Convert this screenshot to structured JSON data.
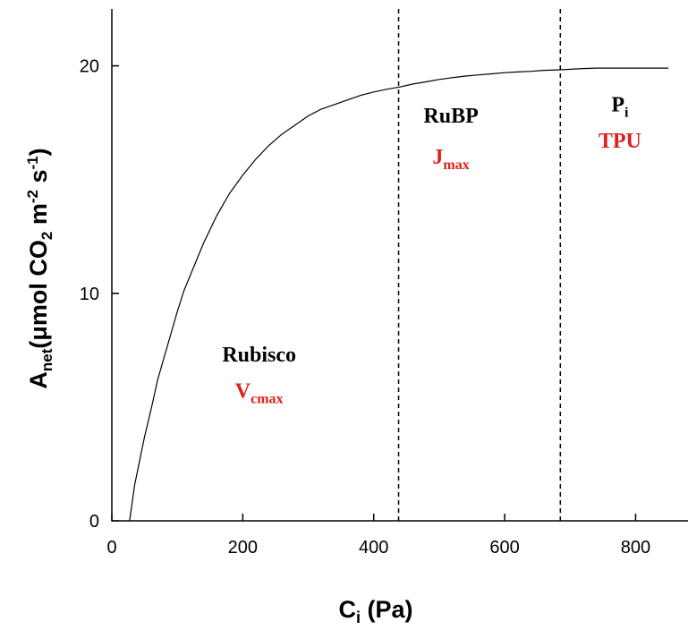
{
  "chart_data": {
    "type": "line",
    "title": "",
    "xlabel": {
      "main": "C",
      "sub": "i",
      "rest": " (Pa)"
    },
    "ylabel": {
      "main": "A",
      "sub": "net",
      "rest": "(μmol CO",
      "co2_sub": "2",
      "rest2": " m",
      "exp1": "-2",
      "rest3": " s",
      "exp2": "-1",
      "close": ")"
    },
    "xlim": [
      0,
      880
    ],
    "ylim": [
      0,
      22.5
    ],
    "xticks": [
      {
        "value": 0,
        "label": "0"
      },
      {
        "value": 200,
        "label": "200"
      },
      {
        "value": 400,
        "label": "400"
      },
      {
        "value": 600,
        "label": "600"
      },
      {
        "value": 800,
        "label": "800"
      }
    ],
    "yticks": [
      {
        "value": 0,
        "label": "0"
      },
      {
        "value": 10,
        "label": "10"
      },
      {
        "value": 20,
        "label": "20"
      }
    ],
    "grid": false,
    "series": [
      {
        "x": [
          27,
          30,
          35,
          40,
          45,
          50,
          60,
          70,
          80,
          90,
          100,
          110,
          120,
          140,
          160,
          180,
          200,
          220,
          240,
          260,
          280,
          300,
          320,
          340,
          360,
          380,
          400,
          420,
          440,
          460,
          480,
          500,
          520,
          540,
          560,
          580,
          600,
          620,
          640,
          660,
          680,
          700,
          720,
          740,
          760,
          780,
          800,
          820,
          850
        ],
        "y": [
          0,
          0.6,
          1.6,
          2.3,
          3.0,
          3.7,
          4.9,
          6.2,
          7.2,
          8.2,
          9.2,
          10.1,
          10.8,
          12.2,
          13.4,
          14.4,
          15.2,
          15.9,
          16.5,
          17.0,
          17.4,
          17.8,
          18.1,
          18.3,
          18.5,
          18.7,
          18.85,
          18.97,
          19.07,
          19.2,
          19.3,
          19.4,
          19.48,
          19.55,
          19.6,
          19.65,
          19.7,
          19.73,
          19.76,
          19.8,
          19.82,
          19.85,
          19.88,
          19.9,
          19.9,
          19.9,
          19.9,
          19.9,
          19.9
        ],
        "color": "#000000"
      }
    ],
    "vlines": [
      {
        "x": 438,
        "style": "dashed"
      },
      {
        "x": 685,
        "style": "dashed"
      }
    ],
    "annotations": [
      {
        "text": "Rubisco",
        "x": 225,
        "y": 7.0,
        "color": "#000000"
      },
      {
        "text": "V",
        "sub": "cmax",
        "x": 225,
        "y": 5.4,
        "color": "#e0201c"
      },
      {
        "text": "RuBP",
        "x": 518,
        "y": 17.5,
        "color": "#000000"
      },
      {
        "text": "J",
        "sub": "max",
        "x": 518,
        "y": 15.7,
        "color": "#e0201c"
      },
      {
        "text": "P",
        "sub": "i",
        "x": 776,
        "y": 18.0,
        "color": "#000000"
      },
      {
        "text": "TPU",
        "x": 776,
        "y": 16.4,
        "color": "#e0201c"
      }
    ]
  }
}
